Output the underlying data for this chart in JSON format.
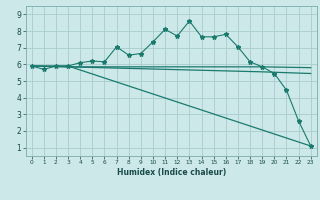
{
  "title": "",
  "xlabel": "Humidex (Indice chaleur)",
  "bg_color": "#cce8e8",
  "grid_color": "#aacccc",
  "line_color": "#1a7a6e",
  "xlim": [
    -0.5,
    23.5
  ],
  "ylim": [
    0.5,
    9.5
  ],
  "xticks": [
    0,
    1,
    2,
    3,
    4,
    5,
    6,
    7,
    8,
    9,
    10,
    11,
    12,
    13,
    14,
    15,
    16,
    17,
    18,
    19,
    20,
    21,
    22,
    23
  ],
  "yticks": [
    1,
    2,
    3,
    4,
    5,
    6,
    7,
    8,
    9
  ],
  "lines": [
    {
      "x": [
        0,
        1,
        2,
        3,
        4,
        5,
        6,
        7,
        8,
        9,
        10,
        11,
        12,
        13,
        14,
        15,
        16,
        17,
        18,
        19,
        20,
        21,
        22,
        23
      ],
      "y": [
        5.9,
        5.7,
        5.9,
        5.9,
        6.1,
        6.2,
        6.15,
        7.05,
        6.55,
        6.65,
        7.35,
        8.1,
        7.7,
        8.6,
        7.65,
        7.65,
        7.8,
        7.05,
        6.15,
        5.85,
        5.45,
        4.45,
        2.6,
        1.1
      ],
      "marker": true
    },
    {
      "x": [
        0,
        3,
        23
      ],
      "y": [
        5.9,
        5.9,
        1.1
      ],
      "marker": false
    },
    {
      "x": [
        0,
        3,
        19,
        23
      ],
      "y": [
        5.9,
        5.85,
        5.85,
        5.8
      ],
      "marker": false
    },
    {
      "x": [
        0,
        3,
        19,
        23
      ],
      "y": [
        5.9,
        5.85,
        5.55,
        5.45
      ],
      "marker": false
    }
  ]
}
